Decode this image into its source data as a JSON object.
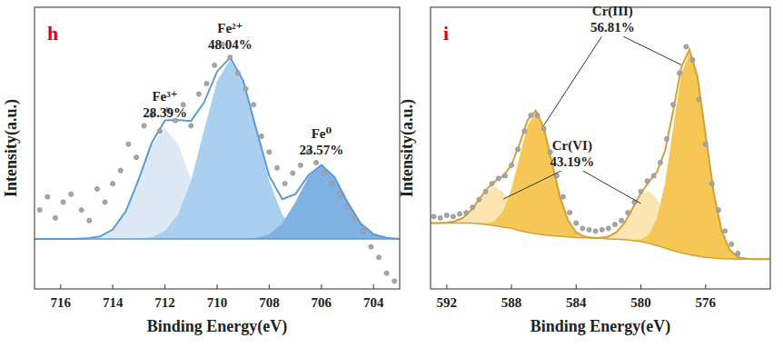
{
  "chart_data": [
    {
      "type": "line",
      "title": "h",
      "x_label": "Binding Energy(eV)",
      "y_label": "Intensity(a.u.)",
      "xlim": [
        717,
        703
      ],
      "xticks": [
        716,
        714,
        712,
        710,
        708,
        706,
        704
      ],
      "ylim": [
        0,
        107
      ],
      "tick_labels": "x",
      "x": [
        703,
        703.5,
        704,
        704.5,
        705,
        705.5,
        706,
        706.5,
        707,
        707.5,
        708,
        708.5,
        709,
        709.5,
        710,
        710.5,
        711,
        711.5,
        712,
        712.5,
        713,
        713.5,
        714,
        714.5,
        715,
        715.5,
        716,
        716.5,
        717
      ],
      "series": [
        {
          "type": "background",
          "color": "#5b9bd5",
          "values": [
            19,
            19,
            19,
            19,
            19,
            19,
            19,
            19,
            19,
            19,
            19,
            19,
            19,
            19,
            19,
            19,
            19,
            19,
            19,
            19,
            19,
            19,
            19,
            19,
            19,
            19,
            19,
            19,
            19
          ]
        },
        {
          "type": "area",
          "name": "Fe³⁺",
          "share_label": "28.39%",
          "color": "#ddeaf6",
          "values": [
            0,
            0,
            0,
            0,
            0,
            0,
            0,
            0,
            0,
            0,
            0,
            0,
            0.2,
            0.9,
            3.6,
            10.5,
            22.7,
            36,
            42,
            36,
            22.7,
            10.5,
            3.6,
            0.9,
            0.2,
            0,
            0,
            0,
            0
          ]
        },
        {
          "type": "area",
          "name": "Fe²⁺",
          "share_label": "48.04%",
          "color": "#abd0ef",
          "values": [
            0,
            0,
            0,
            0,
            0,
            0,
            0.1,
            0.7,
            3,
            9.2,
            22.1,
            41.3,
            60,
            68,
            60,
            41.3,
            22.1,
            9.2,
            3,
            0.7,
            0.1,
            0,
            0,
            0,
            0,
            0,
            0,
            0,
            0
          ]
        },
        {
          "type": "area",
          "name": "Fe⁰",
          "share_label": "23.57%",
          "color": "#7fb1e3",
          "values": [
            0,
            0.4,
            1.8,
            5.9,
            14,
            23.5,
            28,
            23.5,
            14,
            5.9,
            1.8,
            0.4,
            0,
            0,
            0,
            0,
            0,
            0,
            0,
            0,
            0,
            0,
            0,
            0,
            0,
            0,
            0,
            0,
            0
          ]
        },
        {
          "type": "line",
          "color": "#5b9bd5",
          "values": [
            19,
            19.4,
            20.8,
            24.9,
            33,
            42.5,
            47.1,
            43.2,
            36,
            34.1,
            42.9,
            60.7,
            79.2,
            87.9,
            82.6,
            70.8,
            63.8,
            64.2,
            64,
            55.7,
            41.8,
            29.5,
            22.6,
            19.9,
            19.2,
            19,
            19,
            19,
            19
          ]
        },
        {
          "type": "scatter",
          "color": "#a6a6a6",
          "marker": "circle",
          "x": [
            716.8,
            716.5,
            716.2,
            715.9,
            715.6,
            715.2,
            714.9,
            714.6,
            714.3,
            714,
            713.7,
            713.4,
            713.1,
            712.8,
            712.5,
            712.2,
            711.9,
            711.6,
            711.3,
            711,
            710.7,
            710.4,
            710.1,
            709.8,
            709.5,
            709.2,
            708.9,
            708.6,
            708.3,
            708,
            707.7,
            707.4,
            707.1,
            706.8,
            706.5,
            706.2,
            705.9,
            705.6,
            705.3,
            705,
            704.7,
            704.4,
            704.1,
            703.8,
            703.5,
            703.2
          ],
          "values": [
            30,
            35,
            27,
            33,
            36,
            30,
            26,
            38,
            33,
            40,
            45,
            55,
            50,
            62,
            66,
            60,
            68,
            64,
            70,
            62,
            74,
            78,
            85,
            93,
            88,
            82,
            76,
            70,
            58,
            52,
            46,
            40,
            44,
            47,
            52,
            48,
            44,
            40,
            36,
            31,
            27,
            22,
            16,
            12,
            6,
            3
          ]
        }
      ]
    },
    {
      "type": "line",
      "title": "i",
      "x_label": "Binding Energy(eV)",
      "y_label": "Intensity(a.u.)",
      "xlim": [
        593,
        572
      ],
      "xticks": [
        592,
        588,
        584,
        580,
        576
      ],
      "ylim": [
        0,
        107
      ],
      "tick_labels": "x",
      "x": [
        572,
        572.5,
        573,
        573.5,
        574,
        574.5,
        575,
        575.5,
        576,
        576.5,
        577,
        577.5,
        578,
        578.5,
        579,
        579.5,
        580,
        580.5,
        581,
        581.5,
        582,
        582.5,
        583,
        583.5,
        584,
        584.5,
        585,
        585.5,
        586,
        586.5,
        587,
        587.5,
        588,
        588.5,
        589,
        589.5,
        590,
        590.5,
        591,
        591.5,
        592,
        592.5,
        593
      ],
      "series": [
        {
          "type": "background",
          "color": "#d2a235",
          "values": [
            11.3,
            11.3,
            11.3,
            11.3,
            11.3,
            11.4,
            11.5,
            11.7,
            12,
            12.5,
            13,
            13.7,
            14.5,
            15.5,
            16.5,
            17.3,
            18,
            18.4,
            18.7,
            18.9,
            19,
            19.2,
            19.3,
            19.4,
            19.5,
            19.8,
            20,
            20.2,
            20.5,
            21,
            21.5,
            22.2,
            23,
            23.5,
            24,
            24.4,
            24.8,
            25,
            25,
            25,
            25,
            25,
            25
          ]
        },
        {
          "type": "area",
          "name": "Cr(VI)",
          "share_label": "43.19%",
          "color": "#fbe5b0",
          "values": [
            0,
            0,
            0,
            0,
            0,
            0,
            0,
            0,
            0,
            0.2,
            0.9,
            2.7,
            6.5,
            12.1,
            17.6,
            20,
            17.6,
            12.1,
            6.5,
            2.7,
            0.9,
            0.2,
            0,
            0,
            0,
            0,
            0,
            0,
            0.2,
            0.7,
            2,
            4.9,
            9.1,
            13.2,
            15,
            13.2,
            9.1,
            4.9,
            2,
            0.7,
            0.2,
            0,
            0
          ]
        },
        {
          "type": "area",
          "name": "Cr(III)",
          "share_label": "56.81%",
          "color": "#f6c757",
          "values": [
            0,
            0,
            0,
            0.2,
            0.8,
            3.4,
            10.4,
            25,
            46.7,
            67.9,
            77,
            67.9,
            46.7,
            25,
            10.4,
            3.4,
            0.8,
            0.2,
            0,
            0,
            0,
            0,
            0.1,
            0.5,
            2,
            6.2,
            15,
            27.9,
            40.6,
            46,
            40.6,
            27.9,
            15,
            6.2,
            2,
            0.5,
            0.1,
            0,
            0,
            0,
            0,
            0,
            0
          ]
        },
        {
          "type": "line",
          "color": "#d2a235",
          "values": [
            11.3,
            11.3,
            11.3,
            11.5,
            12.1,
            14.8,
            21.9,
            36.7,
            58.7,
            80.6,
            90.9,
            84.3,
            67.7,
            52.6,
            44.5,
            40.7,
            36.4,
            30.7,
            25.2,
            21.6,
            19.9,
            19.4,
            19.4,
            19.9,
            21.5,
            26,
            35,
            48.1,
            61.3,
            67.7,
            64.1,
            55,
            47.1,
            42.9,
            41,
            38.1,
            34,
            29.9,
            27,
            25.7,
            25.2,
            25,
            25
          ]
        },
        {
          "type": "scatter",
          "color": "#a6a6a6",
          "marker": "circle",
          "x": [
            574,
            574.4,
            574.8,
            575.2,
            575.6,
            576,
            576.4,
            576.8,
            577.2,
            577.6,
            578,
            578.4,
            578.8,
            579.2,
            579.6,
            580,
            580.4,
            580.8,
            581.2,
            581.6,
            582,
            582.4,
            582.8,
            583.2,
            583.6,
            584,
            584.4,
            584.8,
            585.2,
            585.6,
            586,
            586.4,
            586.8,
            587.2,
            587.6,
            588,
            588.4,
            588.8,
            589.2,
            589.6,
            590,
            590.4,
            590.8,
            591.2,
            591.6,
            592,
            592.4,
            592.8
          ],
          "values": [
            13.5,
            17,
            22,
            30,
            40,
            55,
            72,
            87,
            92,
            82,
            70,
            57,
            48,
            43,
            41,
            37,
            33,
            29,
            26,
            24.5,
            23,
            22.5,
            22,
            22.5,
            23,
            25,
            29,
            35,
            43,
            52,
            61,
            66,
            66,
            60,
            53,
            47,
            43,
            42,
            40,
            37,
            34,
            31,
            29,
            28.5,
            27.5,
            28,
            27,
            27.5
          ]
        }
      ]
    }
  ]
}
